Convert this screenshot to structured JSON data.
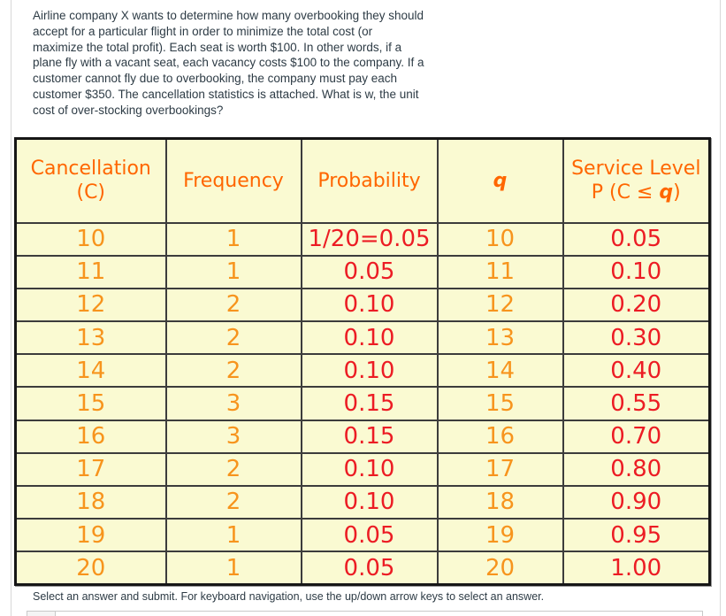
{
  "colors": {
    "question_text": "#2d3b45",
    "table_bg": "#fafad2",
    "header_orange": "#ff6600",
    "value_orange": "#f7941d",
    "value_red": "#ec1c24"
  },
  "question": {
    "text": "Airline company X wants to determine how many overbooking they should\naccept for a particular flight in order to minimize the total cost (or\nmaximize the total profit). Each seat is worth $100. In other words, if a\nplane fly with a vacant seat, each vacancy costs $100 to the company. If a\ncustomer cannot fly due to overbooking, the company must pay each\ncustomer $350. The cancellation statistics is attached. What is w, the unit\ncost of over-stocking overbookings?"
  },
  "table": {
    "header": {
      "c_line1": "Cancellation",
      "c_line2": "(C)",
      "frequency": "Frequency",
      "probability": "Probability",
      "q": "q",
      "service_line1": "Service Level",
      "service_line2_prefix": "P (C ≤ ",
      "service_line2_q": "q",
      "service_line2_suffix": ")"
    },
    "rows": [
      [
        "10",
        "1",
        "1/20=0.05",
        "10",
        "0.05"
      ],
      [
        "11",
        "1",
        "0.05",
        "11",
        "0.10"
      ],
      [
        "12",
        "2",
        "0.10",
        "12",
        "0.20"
      ],
      [
        "13",
        "2",
        "0.10",
        "13",
        "0.30"
      ],
      [
        "14",
        "2",
        "0.10",
        "14",
        "0.40"
      ],
      [
        "15",
        "3",
        "0.15",
        "15",
        "0.55"
      ],
      [
        "16",
        "3",
        "0.15",
        "16",
        "0.70"
      ],
      [
        "17",
        "2",
        "0.10",
        "17",
        "0.80"
      ],
      [
        "18",
        "2",
        "0.10",
        "18",
        "0.90"
      ],
      [
        "19",
        "1",
        "0.05",
        "19",
        "0.95"
      ],
      [
        "20",
        "1",
        "0.05",
        "20",
        "1.00"
      ]
    ],
    "cell_classes": "col-orange,col-orange,col-red,col-orange,col-red"
  },
  "footer": {
    "instruction": "Select an answer and submit. For keyboard navigation, use the up/down arrow keys to select an answer."
  }
}
